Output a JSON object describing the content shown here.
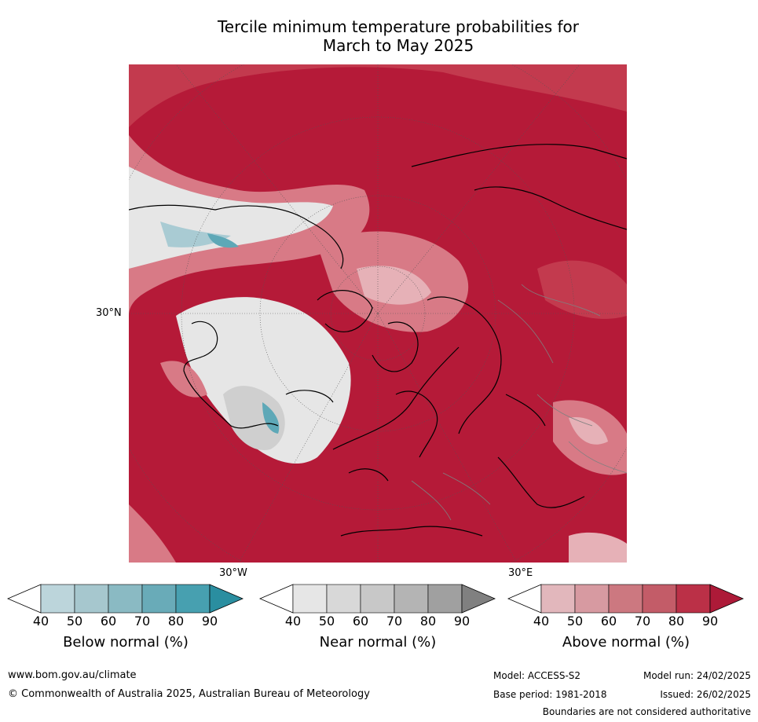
{
  "title_line1": "Tercile minimum temperature probabilities for",
  "title_line2": "March to May 2025",
  "map": {
    "lat_label": "30°N",
    "lon_label_west": "30°W",
    "lon_label_east": "30°E",
    "colors": {
      "ocean_above_high": "#b51a38",
      "above_mid": "#c33a4e",
      "above_low": "#d87a86",
      "above_faint": "#e6b1b7",
      "near_normal": "#e6e6e6",
      "near_mid": "#cfcfcf",
      "below_low": "#a9cbd3",
      "below_mid": "#5ea8b7",
      "coast": "#000000",
      "border": "#808080"
    }
  },
  "legend": {
    "below": {
      "title": "Below normal (%)",
      "ticks": [
        "40",
        "50",
        "60",
        "70",
        "80",
        "90"
      ],
      "colors": [
        "#ffffff",
        "#bcd5db",
        "#a6c7ce",
        "#8abac3",
        "#69abb8",
        "#47a0b0",
        "#2a8ea0"
      ]
    },
    "near": {
      "title": "Near normal (%)",
      "ticks": [
        "40",
        "50",
        "60",
        "70",
        "80",
        "90"
      ],
      "colors": [
        "#ffffff",
        "#e6e6e6",
        "#d8d8d8",
        "#c8c8c8",
        "#b4b4b4",
        "#a0a0a0",
        "#808080"
      ]
    },
    "above": {
      "title": "Above normal (%)",
      "ticks": [
        "40",
        "50",
        "60",
        "70",
        "80",
        "90"
      ],
      "colors": [
        "#ffffff",
        "#e2b7bc",
        "#d79aa1",
        "#cc7880",
        "#c35c68",
        "#bb3047",
        "#ad1a38"
      ]
    }
  },
  "footer": {
    "url": "www.bom.gov.au/climate",
    "copyright": "© Commonwealth of Australia 2025, Australian Bureau of Meteorology",
    "model": "Model: ACCESS-S2",
    "model_run": "Model run: 24/02/2025",
    "base_period": "Base period: 1981-2018",
    "issued": "Issued: 26/02/2025",
    "disclaimer": "Boundaries are not considered authoritative"
  }
}
